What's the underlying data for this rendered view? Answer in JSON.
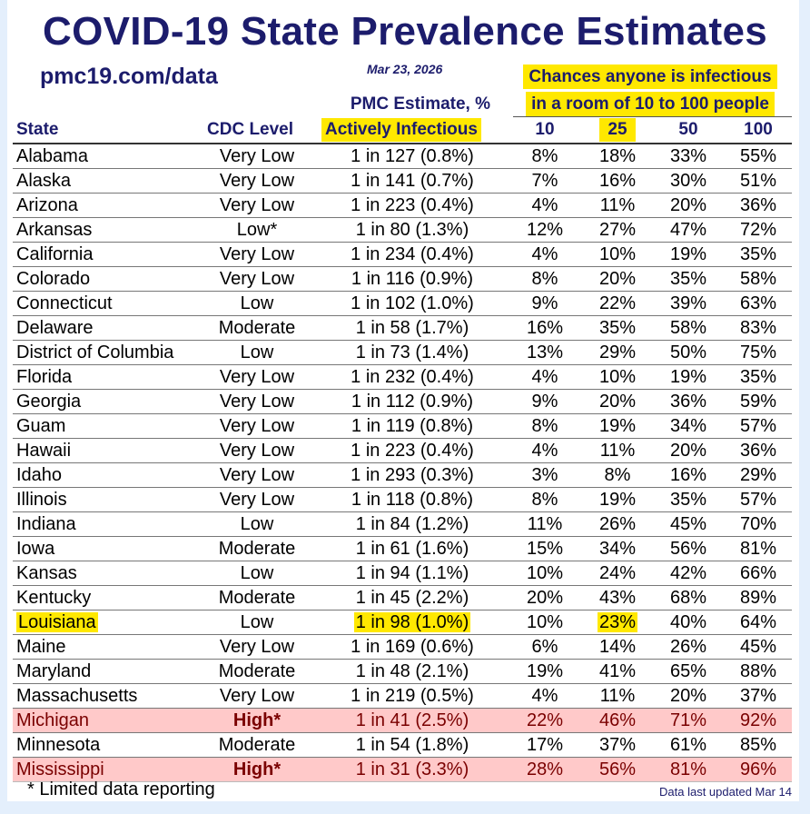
{
  "title": "COVID-19 State Prevalence Estimates",
  "url": "pmc19.com/data",
  "date": "Mar 23, 2026",
  "chances_line1": "Chances anyone is infectious",
  "chances_line2": "in a room of 10 to 100 people",
  "pmc_line1": "PMC Estimate, %",
  "columns": {
    "state": "State",
    "cdc": "CDC Level",
    "pmc": "Actively Infectious",
    "r10": "10",
    "r25": "25",
    "r50": "50",
    "r100": "100"
  },
  "highlight_color": "#ffe800",
  "high_row_color": "#ffc9c9",
  "rows": [
    {
      "state": "Alabama",
      "cdc": "Very Low",
      "est": "1 in 127 (0.8%)",
      "p10": "8%",
      "p25": "18%",
      "p50": "33%",
      "p100": "55%"
    },
    {
      "state": "Alaska",
      "cdc": "Very Low",
      "est": "1 in 141 (0.7%)",
      "p10": "7%",
      "p25": "16%",
      "p50": "30%",
      "p100": "51%"
    },
    {
      "state": "Arizona",
      "cdc": "Very Low",
      "est": "1 in 223 (0.4%)",
      "p10": "4%",
      "p25": "11%",
      "p50": "20%",
      "p100": "36%"
    },
    {
      "state": "Arkansas",
      "cdc": "Low*",
      "est": "1 in 80 (1.3%)",
      "p10": "12%",
      "p25": "27%",
      "p50": "47%",
      "p100": "72%"
    },
    {
      "state": "California",
      "cdc": "Very Low",
      "est": "1 in 234 (0.4%)",
      "p10": "4%",
      "p25": "10%",
      "p50": "19%",
      "p100": "35%"
    },
    {
      "state": "Colorado",
      "cdc": "Very Low",
      "est": "1 in 116 (0.9%)",
      "p10": "8%",
      "p25": "20%",
      "p50": "35%",
      "p100": "58%"
    },
    {
      "state": "Connecticut",
      "cdc": "Low",
      "est": "1 in 102 (1.0%)",
      "p10": "9%",
      "p25": "22%",
      "p50": "39%",
      "p100": "63%"
    },
    {
      "state": "Delaware",
      "cdc": "Moderate",
      "est": "1 in 58 (1.7%)",
      "p10": "16%",
      "p25": "35%",
      "p50": "58%",
      "p100": "83%"
    },
    {
      "state": "District of Columbia",
      "cdc": "Low",
      "est": "1 in 73 (1.4%)",
      "p10": "13%",
      "p25": "29%",
      "p50": "50%",
      "p100": "75%"
    },
    {
      "state": "Florida",
      "cdc": "Very Low",
      "est": "1 in 232 (0.4%)",
      "p10": "4%",
      "p25": "10%",
      "p50": "19%",
      "p100": "35%"
    },
    {
      "state": "Georgia",
      "cdc": "Very Low",
      "est": "1 in 112 (0.9%)",
      "p10": "9%",
      "p25": "20%",
      "p50": "36%",
      "p100": "59%"
    },
    {
      "state": "Guam",
      "cdc": "Very Low",
      "est": "1 in 119 (0.8%)",
      "p10": "8%",
      "p25": "19%",
      "p50": "34%",
      "p100": "57%"
    },
    {
      "state": "Hawaii",
      "cdc": "Very Low",
      "est": "1 in 223 (0.4%)",
      "p10": "4%",
      "p25": "11%",
      "p50": "20%",
      "p100": "36%"
    },
    {
      "state": "Idaho",
      "cdc": "Very Low",
      "est": "1 in 293 (0.3%)",
      "p10": "3%",
      "p25": "8%",
      "p50": "16%",
      "p100": "29%"
    },
    {
      "state": "Illinois",
      "cdc": "Very Low",
      "est": "1 in 118 (0.8%)",
      "p10": "8%",
      "p25": "19%",
      "p50": "35%",
      "p100": "57%"
    },
    {
      "state": "Indiana",
      "cdc": "Low",
      "est": "1 in 84 (1.2%)",
      "p10": "11%",
      "p25": "26%",
      "p50": "45%",
      "p100": "70%"
    },
    {
      "state": "Iowa",
      "cdc": "Moderate",
      "est": "1 in 61 (1.6%)",
      "p10": "15%",
      "p25": "34%",
      "p50": "56%",
      "p100": "81%"
    },
    {
      "state": "Kansas",
      "cdc": "Low",
      "est": "1 in 94 (1.1%)",
      "p10": "10%",
      "p25": "24%",
      "p50": "42%",
      "p100": "66%"
    },
    {
      "state": "Kentucky",
      "cdc": "Moderate",
      "est": "1 in 45 (2.2%)",
      "p10": "20%",
      "p25": "43%",
      "p50": "68%",
      "p100": "89%"
    },
    {
      "state": "Louisiana",
      "cdc": "Low",
      "est": "1 in 98 (1.0%)",
      "p10": "10%",
      "p25": "23%",
      "p50": "40%",
      "p100": "64%",
      "highlight": true
    },
    {
      "state": "Maine",
      "cdc": "Very Low",
      "est": "1 in 169 (0.6%)",
      "p10": "6%",
      "p25": "14%",
      "p50": "26%",
      "p100": "45%"
    },
    {
      "state": "Maryland",
      "cdc": "Moderate",
      "est": "1 in 48 (2.1%)",
      "p10": "19%",
      "p25": "41%",
      "p50": "65%",
      "p100": "88%"
    },
    {
      "state": "Massachusetts",
      "cdc": "Very Low",
      "est": "1 in 219 (0.5%)",
      "p10": "4%",
      "p25": "11%",
      "p50": "20%",
      "p100": "37%"
    },
    {
      "state": "Michigan",
      "cdc": "High*",
      "est": "1 in 41 (2.5%)",
      "p10": "22%",
      "p25": "46%",
      "p50": "71%",
      "p100": "92%",
      "high": true
    },
    {
      "state": "Minnesota",
      "cdc": "Moderate",
      "est": "1 in 54 (1.8%)",
      "p10": "17%",
      "p25": "37%",
      "p50": "61%",
      "p100": "85%"
    },
    {
      "state": "Mississippi",
      "cdc": "High*",
      "est": "1 in 31 (3.3%)",
      "p10": "28%",
      "p25": "56%",
      "p50": "81%",
      "p100": "96%",
      "high": true
    }
  ],
  "footnote": "* Limited data reporting",
  "updated": "Data last updated Mar 14"
}
